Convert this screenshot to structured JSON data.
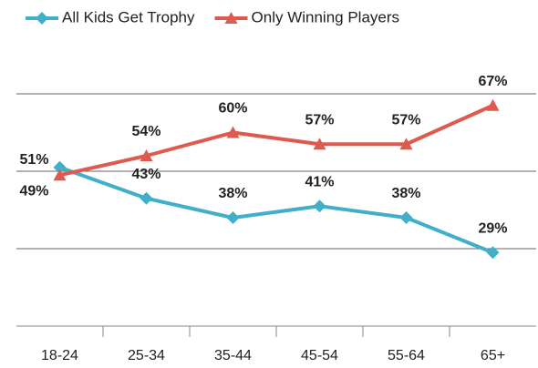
{
  "chart_data": {
    "type": "line",
    "categories": [
      "18-24",
      "25-34",
      "35-44",
      "45-54",
      "55-64",
      "65+"
    ],
    "series": [
      {
        "name": "All Kids Get Trophy",
        "color": "#42afc8",
        "marker": "diamond",
        "values": [
          51,
          43,
          38,
          41,
          38,
          29
        ],
        "value_labels": [
          "51%",
          "43%",
          "38%",
          "41%",
          "38%",
          "29%"
        ]
      },
      {
        "name": "Only Winning Players",
        "color": "#df5a4e",
        "marker": "triangle",
        "values": [
          49,
          54,
          60,
          57,
          57,
          67
        ],
        "value_labels": [
          "49%",
          "54%",
          "60%",
          "57%",
          "57%",
          "67%"
        ]
      }
    ],
    "ylim": [
      10,
      70
    ],
    "yticks": [
      10,
      30,
      50,
      70
    ],
    "grid": true
  }
}
